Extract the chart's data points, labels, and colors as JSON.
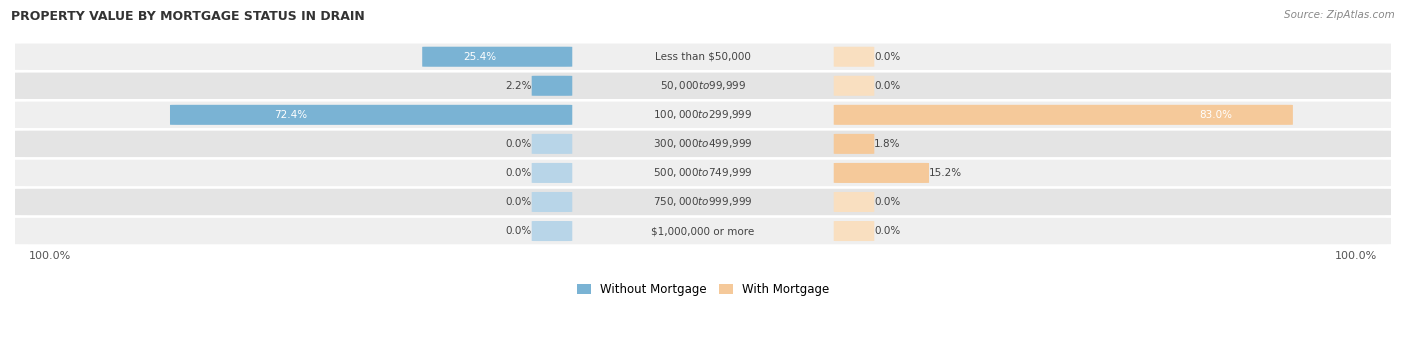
{
  "title": "PROPERTY VALUE BY MORTGAGE STATUS IN DRAIN",
  "source": "Source: ZipAtlas.com",
  "categories": [
    "Less than $50,000",
    "$50,000 to $99,999",
    "$100,000 to $299,999",
    "$300,000 to $499,999",
    "$500,000 to $749,999",
    "$750,000 to $999,999",
    "$1,000,000 or more"
  ],
  "without_mortgage": [
    25.4,
    2.2,
    72.4,
    0.0,
    0.0,
    0.0,
    0.0
  ],
  "with_mortgage": [
    0.0,
    0.0,
    83.0,
    1.8,
    15.2,
    0.0,
    0.0
  ],
  "color_without": "#7ab3d4",
  "color_with": "#f5c99a",
  "color_without_stub": "#b8d5e8",
  "color_with_stub": "#f9dfc0",
  "row_bg_color_odd": "#efefef",
  "row_bg_color_even": "#e4e4e4",
  "text_dark": "#444444",
  "text_white": "#ffffff",
  "axis_label_left": "100.0%",
  "axis_label_right": "100.0%",
  "legend_without": "Without Mortgage",
  "legend_with": "With Mortgage",
  "max_val": 100.0,
  "stub_val": 5.0,
  "figsize": [
    14.06,
    3.4
  ],
  "dpi": 100
}
